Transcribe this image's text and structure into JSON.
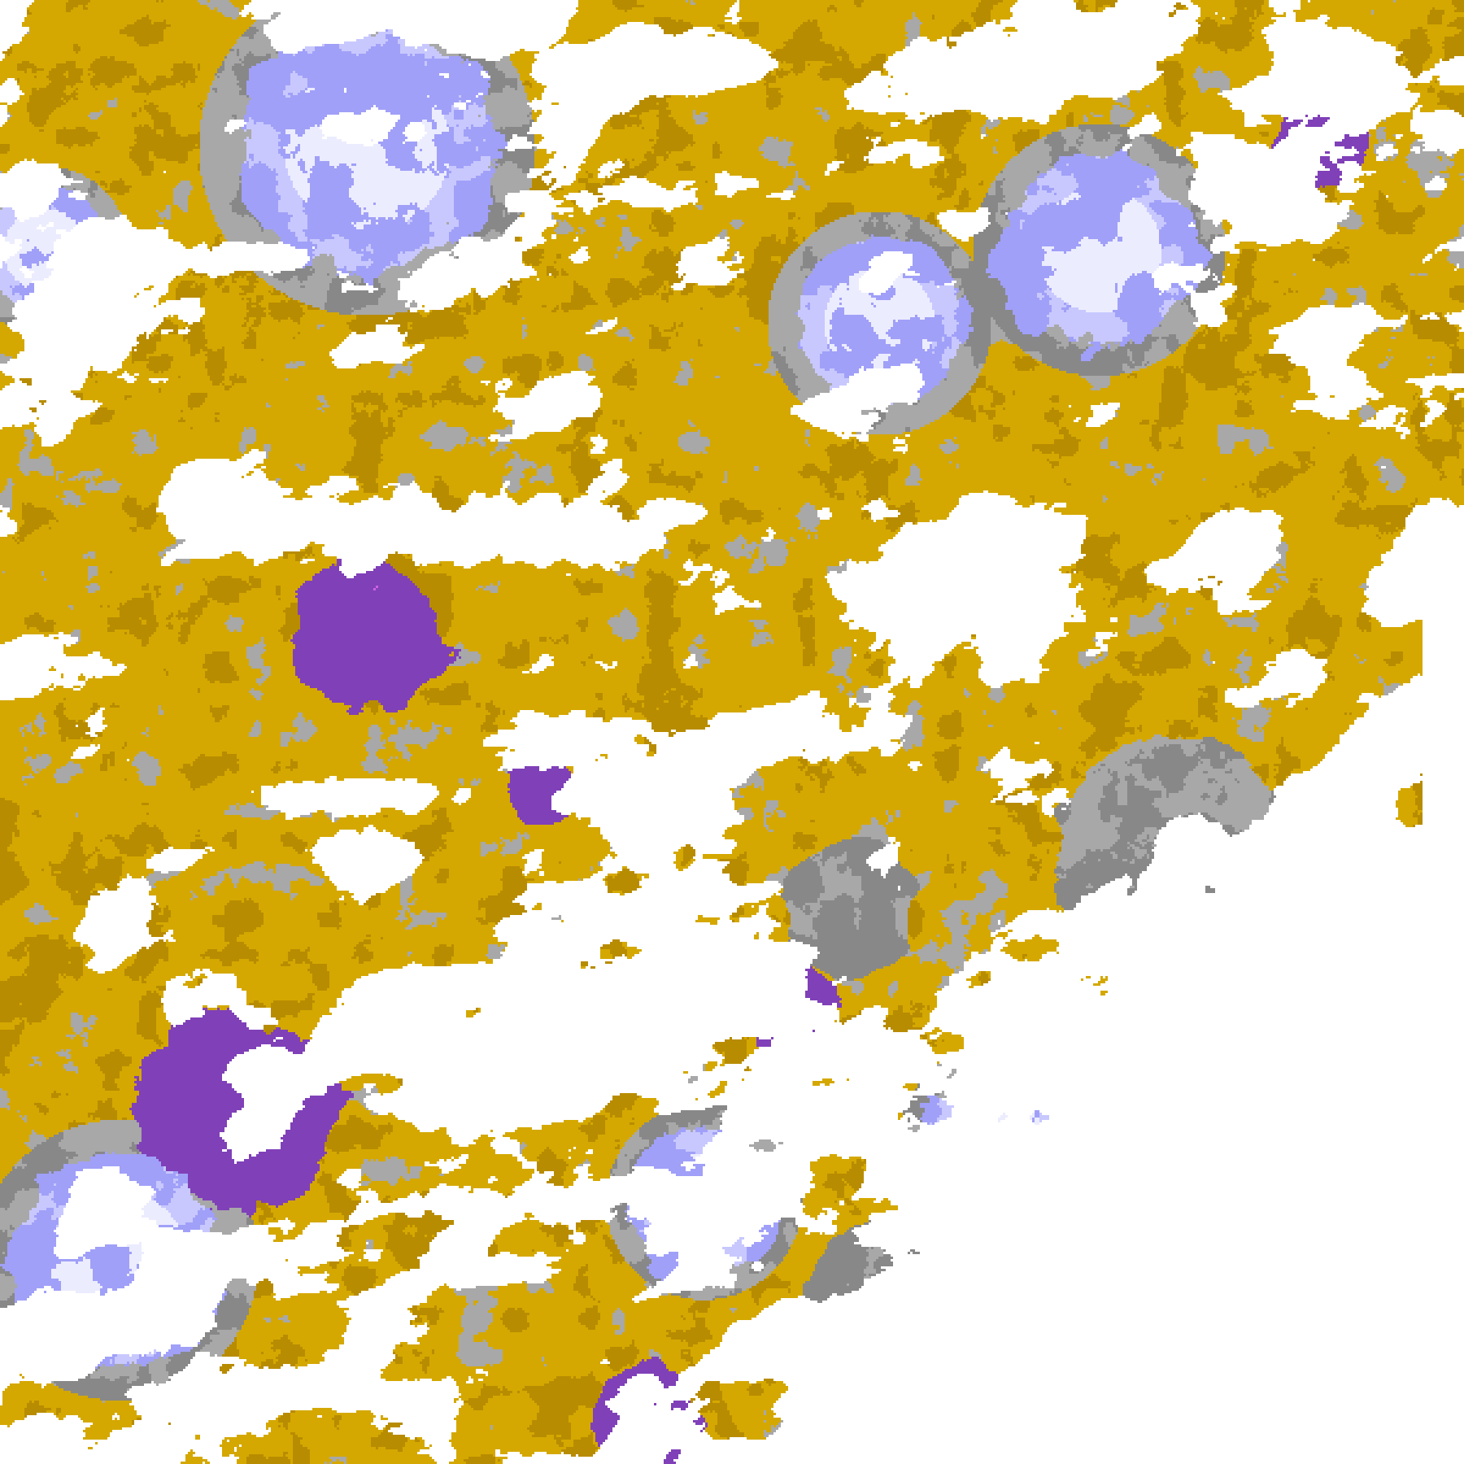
{
  "map": {
    "type": "satellite cloud classification imagery",
    "palette": {
      "clear": "#ffffff",
      "gold": "#d4a800",
      "dark_gold": "#b88c00",
      "purple": "#8040b8",
      "magenta": "#d060e0",
      "lavender": "#c8c8ff",
      "periwinkle": "#a0a0f8",
      "pale": "#ececff",
      "gray": "#a8a8a8",
      "dark_gray": "#888888"
    }
  }
}
